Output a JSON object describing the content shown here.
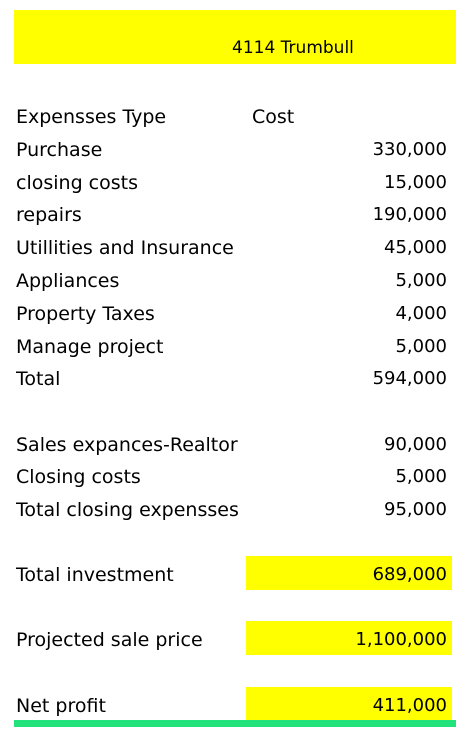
{
  "title": "4114 Trumbull",
  "header": {
    "type_label": "Expensses Type",
    "cost_label": "Cost"
  },
  "expenses": [
    {
      "label": "Purchase",
      "value": "330,000"
    },
    {
      "label": "closing costs",
      "value": "15,000"
    },
    {
      "label": "repairs",
      "value": "190,000"
    },
    {
      "label": "Utillities and Insurance",
      "value": "45,000"
    },
    {
      "label": "Appliances",
      "value": "5,000"
    },
    {
      "label": "Property Taxes",
      "value": "4,000"
    },
    {
      "label": "Manage project",
      "value": "5,000"
    },
    {
      "label": "Total",
      "value": "594,000"
    }
  ],
  "sales": [
    {
      "label": "Sales expances-Realtor",
      "value": "90,000"
    },
    {
      "label": "Closing costs",
      "value": "5,000"
    },
    {
      "label": "Total closing expensses",
      "value": "95,000"
    }
  ],
  "summary": {
    "total_investment_label": "Total investment",
    "total_investment_value": "689,000",
    "sale_price_label": "Projected sale price",
    "sale_price_value": "1,100,000",
    "net_profit_label": "Net profit",
    "net_profit_value": "411,000"
  },
  "colors": {
    "highlight": "#ffff00",
    "accent_line": "#22e27c"
  }
}
